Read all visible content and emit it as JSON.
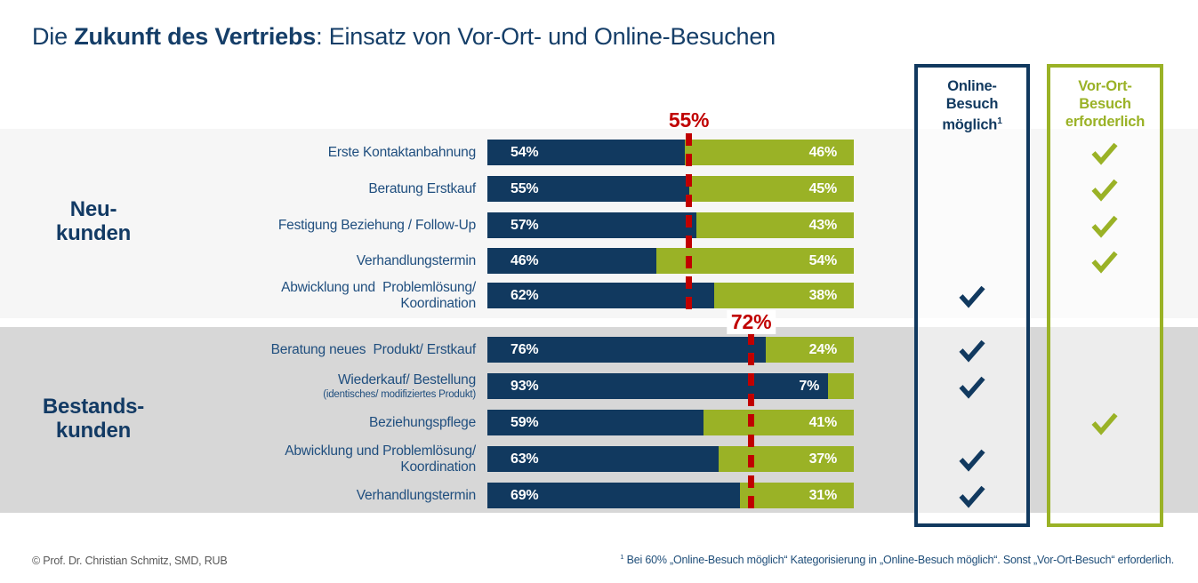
{
  "title": {
    "prefix": "Die ",
    "bold": "Zukunft des Vertriebs",
    "suffix": ": Einsatz von Vor-Ort- und Online-Besuchen"
  },
  "colors": {
    "navy": "#11395f",
    "green": "#9ab226",
    "red": "#c00000",
    "band_light": "#f6f6f6",
    "band_dark": "#d7d7d7"
  },
  "columns": {
    "online": {
      "line1": "Online-",
      "line2": "Besuch",
      "line3": "möglich",
      "superscript": "1"
    },
    "voro": {
      "line1": "Vor-Ort-",
      "line2": "Besuch",
      "line3": "erforderlich"
    }
  },
  "groups": [
    {
      "line1": "Neu-",
      "line2": "kunden"
    },
    {
      "line1": "Bestands-",
      "line2": "kunden"
    }
  ],
  "chart_data": {
    "type": "bar",
    "subtype": "horizontal-stacked-100pct",
    "title": "Die Zukunft des Vertriebs: Einsatz von Vor-Ort- und Online-Besuchen",
    "series_names": [
      "dunkelblau (links)",
      "grün (rechts)"
    ],
    "x_range_pct": [
      0,
      100
    ],
    "rows": [
      {
        "group": "Neukunden",
        "label_lines": [
          "Erste Kontaktanbahnung"
        ],
        "navy": 54,
        "green": 46,
        "navy_label": "54%",
        "green_label": "46%",
        "check": "vor-ort"
      },
      {
        "group": "Neukunden",
        "label_lines": [
          "Beratung Erstkauf"
        ],
        "navy": 55,
        "green": 45,
        "navy_label": "55%",
        "green_label": "45%",
        "check": "vor-ort"
      },
      {
        "group": "Neukunden",
        "label_lines": [
          "Festigung Beziehung / Follow-Up"
        ],
        "navy": 57,
        "green": 43,
        "navy_label": "57%",
        "green_label": "43%",
        "check": "vor-ort"
      },
      {
        "group": "Neukunden",
        "label_lines": [
          "Verhandlungstermin"
        ],
        "navy": 46,
        "green": 54,
        "navy_label": "46%",
        "green_label": "54%",
        "check": "vor-ort"
      },
      {
        "group": "Neukunden",
        "label_lines": [
          "Abwicklung und  Problemlösung/",
          "Koordination"
        ],
        "navy": 62,
        "green": 38,
        "navy_label": "62%",
        "green_label": "38%",
        "check": "online"
      },
      {
        "group": "Bestandskunden",
        "label_lines": [
          "Beratung neues  Produkt/ Erstkauf"
        ],
        "navy": 76,
        "green": 24,
        "navy_label": "76%",
        "green_label": "24%",
        "check": "online"
      },
      {
        "group": "Bestandskunden",
        "label_lines": [
          "Wiederkauf/ Bestellung",
          "(identisches/ modifiziertes Produkt)"
        ],
        "navy": 93,
        "green": 7,
        "navy_label": "93%",
        "green_label": "7%",
        "check": "online"
      },
      {
        "group": "Bestandskunden",
        "label_lines": [
          "Beziehungspflege"
        ],
        "navy": 59,
        "green": 41,
        "navy_label": "59%",
        "green_label": "41%",
        "check": "vor-ort"
      },
      {
        "group": "Bestandskunden",
        "label_lines": [
          "Abwicklung und Problemlösung/",
          "Koordination"
        ],
        "navy": 63,
        "green": 37,
        "navy_label": "63%",
        "green_label": "37%",
        "check": "online"
      },
      {
        "group": "Bestandskunden",
        "label_lines": [
          "Verhandlungstermin"
        ],
        "navy": 69,
        "green": 31,
        "navy_label": "69%",
        "green_label": "31%",
        "check": "online"
      }
    ],
    "thresholds": [
      {
        "group": "Neukunden",
        "value": 55,
        "label": "55%"
      },
      {
        "group": "Bestandskunden",
        "value": 72,
        "label": "72%"
      }
    ],
    "legend_columns": [
      "Online-Besuch möglich¹",
      "Vor-Ort-Besuch erforderlich"
    ]
  },
  "footer": {
    "copyright": "© Prof. Dr. Christian Schmitz, SMD, RUB",
    "footnote_sup": "1",
    "footnote_text": " Bei 60% „Online-Besuch möglich“ Kategorisierung in „Online-Besuch möglich“. Sonst „Vor-Ort-Besuch“ erforderlich."
  }
}
